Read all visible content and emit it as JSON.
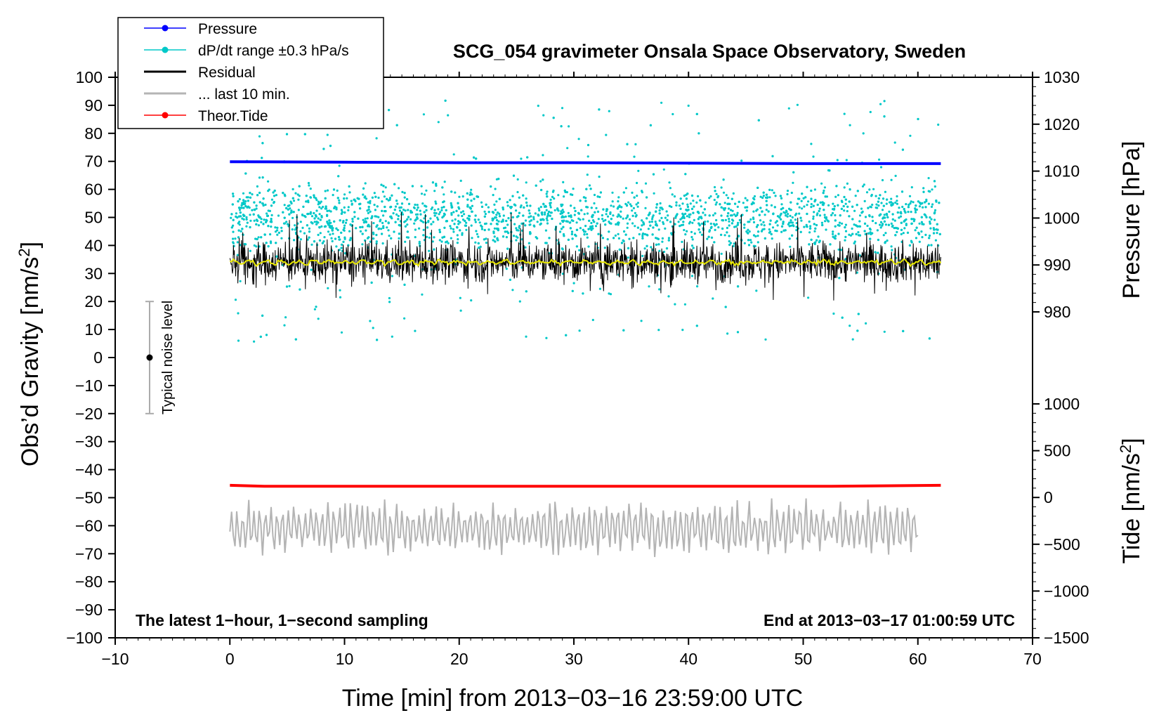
{
  "chart_data": {
    "type": "line",
    "title": "SCG_054 gravimeter Onsala Space Observatory, Sweden",
    "xlabel": "Time [min] from 2013−03−16 23:59:00 UTC",
    "ylabel_left": "Obs’d Gravity [nm/s²]",
    "ylabel_right_top": "Pressure [hPa]",
    "ylabel_right_bottom": "Tide [nm/s²]",
    "footnote_left": "The latest 1−hour, 1−second sampling",
    "footnote_right": "End at 2013−03−17 01:00:59 UTC",
    "noise_label": "Typical noise level",
    "legend_position": "top-left",
    "xlim": [
      -10,
      70
    ],
    "ylim": [
      -100,
      100
    ],
    "pressure_lim": [
      980,
      1030
    ],
    "tide_lim": [
      -1500,
      1000
    ],
    "x_ticks": [
      -10,
      0,
      10,
      20,
      30,
      40,
      50,
      60,
      70
    ],
    "y_ticks": [
      -100,
      -90,
      -80,
      -70,
      -60,
      -50,
      -40,
      -30,
      -20,
      -10,
      0,
      10,
      20,
      30,
      40,
      50,
      60,
      70,
      80,
      90,
      100
    ],
    "pressure_ticks": [
      980,
      990,
      1000,
      1010,
      1020,
      1030
    ],
    "tide_ticks": [
      -1500,
      -1000,
      -500,
      0,
      500,
      1000
    ],
    "noise_bar": {
      "x": -7,
      "center": 0,
      "low": -20,
      "high": 20
    },
    "series": [
      {
        "name": "Pressure",
        "color": "#0000ff",
        "axis": "pressure",
        "x": [
          0,
          10,
          20,
          30,
          40,
          50,
          62
        ],
        "values": [
          1012.0,
          1011.9,
          1011.8,
          1011.8,
          1011.7,
          1011.6,
          1011.6
        ]
      },
      {
        "name": "dP/dt range ±0.3 hPa/s",
        "color": "#00c8c8",
        "axis": "gravity",
        "center": 50,
        "spread": 8,
        "outlier_range": [
          0,
          97
        ]
      },
      {
        "name": "Residual",
        "color": "#000000",
        "axis": "gravity",
        "center": 34,
        "spread": 5,
        "range": [
          20,
          52
        ]
      },
      {
        "name": "... last 10 min.",
        "color": "#b4b4b4",
        "axis": "gravity",
        "center": -61,
        "range": [
          -78,
          -46
        ],
        "x_end": 60
      },
      {
        "name": "Theor.Tide",
        "color": "#ff0000",
        "axis": "tide",
        "x": [
          0,
          3,
          52.5,
          62
        ],
        "values": [
          130,
          120,
          120,
          130
        ]
      }
    ],
    "smoothed_line_color": "#e6e600",
    "smoothed_center": 34
  }
}
